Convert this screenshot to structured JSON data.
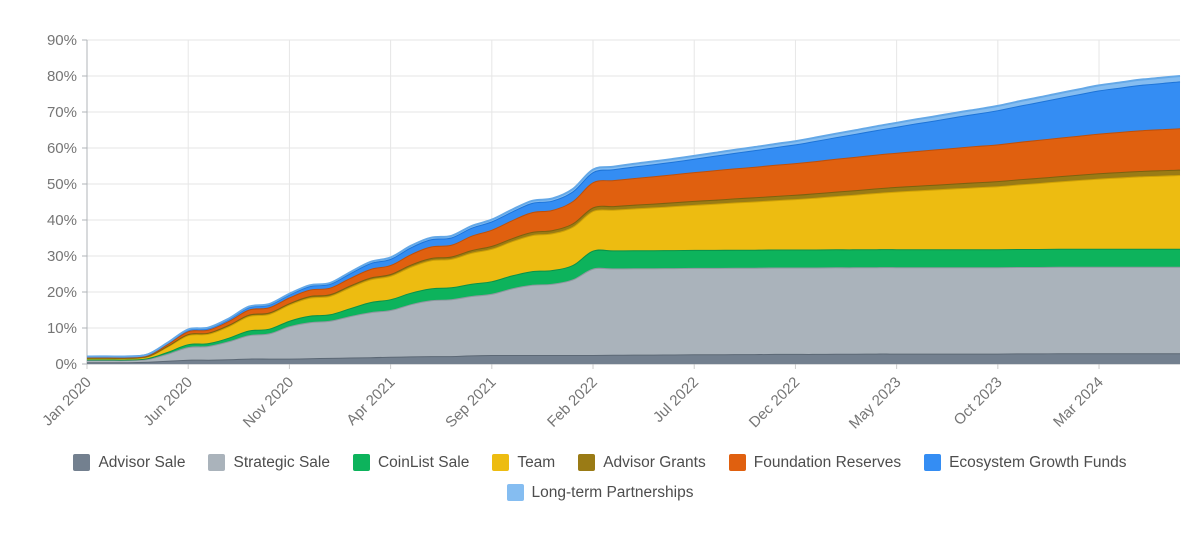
{
  "chart_data": {
    "type": "area",
    "stacked": true,
    "curve": "smooth",
    "title": "",
    "xlabel": "",
    "ylabel": "",
    "ylim": [
      0,
      90
    ],
    "y_tick_labels": [
      "0%",
      "10%",
      "20%",
      "30%",
      "40%",
      "50%",
      "60%",
      "70%",
      "80%",
      "90%"
    ],
    "x_tick_labels": [
      "Jan 2020",
      "Jun 2020",
      "Nov 2020",
      "Apr 2021",
      "Sep 2021",
      "Feb 2022",
      "Jul 2022",
      "Dec 2022",
      "May 2023",
      "Oct 2023",
      "Mar 2024"
    ],
    "x_tick_every_points": 5,
    "x_points": 55,
    "x_start": "Jan 2020",
    "x_end_estimate": "Jul 2024",
    "grid": true,
    "legend_position": "bottom",
    "axis_colors": {
      "grid": "#e6e6e6",
      "axis_line": "#b0b4b8",
      "tick_text": "#757575"
    },
    "legend_rows": [
      [
        "Advisor Sale",
        "Strategic Sale",
        "CoinList Sale",
        "Team",
        "Advisor Grants",
        "Foundation Reserves",
        "Ecosystem Growth Funds"
      ],
      [
        "Long-term Partnerships"
      ]
    ],
    "series": [
      {
        "name": "Advisor Sale",
        "color": "#73808f",
        "stroke": "#5c6875",
        "values": [
          0.5,
          0.5,
          0.5,
          0.6,
          0.9,
          1.2,
          1.2,
          1.3,
          1.5,
          1.5,
          1.5,
          1.6,
          1.7,
          1.8,
          1.9,
          2.0,
          2.1,
          2.2,
          2.2,
          2.4,
          2.5,
          2.5,
          2.5,
          2.5,
          2.5,
          2.5,
          2.55,
          2.6,
          2.6,
          2.65,
          2.7,
          2.7,
          2.75,
          2.75,
          2.8,
          2.8,
          2.8,
          2.85,
          2.85,
          2.9,
          2.9,
          2.9,
          2.9,
          2.9,
          2.9,
          2.9,
          2.95,
          2.95,
          3.0,
          3.0,
          3.0,
          3.0,
          3.0,
          3.0,
          3.0
        ]
      },
      {
        "name": "Strategic Sale",
        "color": "#aab3bb",
        "stroke": "#8e979f",
        "values": [
          0.6,
          0.6,
          0.6,
          0.8,
          2.0,
          3.5,
          3.8,
          5.0,
          6.5,
          7.0,
          9.0,
          10.0,
          10.3,
          11.5,
          12.5,
          13.0,
          14.5,
          15.5,
          15.8,
          16.5,
          17.0,
          18.5,
          19.5,
          19.8,
          21.0,
          24.0,
          24.0,
          24.0,
          24.0,
          24.0,
          24.0,
          24.0,
          24.0,
          24.0,
          24.0,
          24.0,
          24.0,
          24.0,
          24.0,
          24.0,
          24.0,
          24.0,
          24.0,
          24.0,
          24.0,
          24.0,
          24.0,
          24.0,
          24.0,
          24.0,
          24.0,
          24.0,
          24.0,
          24.0,
          24.0
        ]
      },
      {
        "name": "CoinList Sale",
        "color": "#0db35c",
        "stroke": "#0a9149",
        "values": [
          0.15,
          0.15,
          0.15,
          0.2,
          0.5,
          0.8,
          0.8,
          1.0,
          1.3,
          1.3,
          1.5,
          1.8,
          1.8,
          2.2,
          2.8,
          3.0,
          3.2,
          3.3,
          3.3,
          3.4,
          3.5,
          3.6,
          3.8,
          3.8,
          4.0,
          5.0,
          5.0,
          5.0,
          5.0,
          5.0,
          5.0,
          5.0,
          5.0,
          5.0,
          5.0,
          5.0,
          5.0,
          5.0,
          5.0,
          5.0,
          5.0,
          5.0,
          5.0,
          5.0,
          5.0,
          5.0,
          5.0,
          5.0,
          5.0,
          5.0,
          5.0,
          5.0,
          5.0,
          5.0,
          5.0
        ]
      },
      {
        "name": "Team",
        "color": "#edbc11",
        "stroke": "#cfa106",
        "values": [
          0.4,
          0.4,
          0.4,
          0.5,
          1.5,
          2.5,
          2.6,
          3.2,
          4.0,
          4.1,
          4.5,
          5.0,
          5.1,
          5.8,
          6.3,
          6.5,
          7.2,
          7.8,
          7.9,
          8.6,
          9.0,
          9.5,
          10.0,
          10.2,
          10.6,
          11.0,
          11.3,
          11.6,
          11.9,
          12.2,
          12.5,
          12.8,
          13.1,
          13.4,
          13.7,
          14.0,
          14.4,
          14.8,
          15.2,
          15.6,
          16.0,
          16.3,
          16.6,
          16.9,
          17.2,
          17.5,
          17.9,
          18.3,
          18.7,
          19.1,
          19.5,
          19.8,
          20.1,
          20.3,
          20.5
        ]
      },
      {
        "name": "Advisor Grants",
        "color": "#9a7b15",
        "stroke": "#7c620e",
        "values": [
          0.08,
          0.08,
          0.08,
          0.1,
          0.2,
          0.3,
          0.3,
          0.35,
          0.4,
          0.4,
          0.4,
          0.45,
          0.45,
          0.5,
          0.5,
          0.5,
          0.6,
          0.65,
          0.65,
          0.75,
          0.8,
          0.85,
          0.9,
          0.9,
          0.95,
          1.0,
          1.02,
          1.04,
          1.06,
          1.08,
          1.1,
          1.12,
          1.14,
          1.16,
          1.18,
          1.2,
          1.22,
          1.24,
          1.26,
          1.28,
          1.3,
          1.32,
          1.34,
          1.36,
          1.38,
          1.4,
          1.42,
          1.44,
          1.46,
          1.48,
          1.5,
          1.5,
          1.5,
          1.5,
          1.5
        ]
      },
      {
        "name": "Foundation Reserves",
        "color": "#e0600f",
        "stroke": "#bf4f08",
        "values": [
          0.2,
          0.2,
          0.2,
          0.25,
          0.5,
          0.8,
          0.85,
          1.1,
          1.4,
          1.45,
          1.6,
          1.8,
          1.85,
          2.1,
          2.4,
          2.5,
          2.9,
          3.2,
          3.25,
          4.0,
          4.5,
          5.0,
          5.5,
          5.6,
          6.2,
          7.0,
          7.2,
          7.4,
          7.6,
          7.8,
          8.0,
          8.2,
          8.35,
          8.5,
          8.65,
          8.8,
          8.95,
          9.1,
          9.25,
          9.4,
          9.5,
          9.65,
          9.8,
          9.95,
          10.1,
          10.2,
          10.4,
          10.55,
          10.7,
          10.85,
          11.0,
          11.15,
          11.3,
          11.4,
          11.5
        ]
      },
      {
        "name": "Ecosystem Growth Funds",
        "color": "#348df3",
        "stroke": "#1d74d8",
        "values": [
          0.12,
          0.12,
          0.12,
          0.15,
          0.3,
          0.4,
          0.45,
          0.55,
          0.7,
          0.75,
          0.8,
          1.0,
          1.05,
          1.3,
          1.6,
          1.7,
          1.9,
          2.0,
          2.05,
          2.2,
          2.3,
          2.4,
          2.55,
          2.6,
          2.7,
          2.8,
          3.0,
          3.2,
          3.35,
          3.5,
          3.7,
          4.0,
          4.3,
          4.6,
          4.9,
          5.2,
          5.6,
          6.0,
          6.4,
          6.8,
          7.2,
          7.7,
          8.1,
          8.6,
          9.0,
          9.5,
          10.0,
          10.5,
          11.0,
          11.5,
          12.0,
          12.3,
          12.6,
          12.8,
          13.0
        ]
      },
      {
        "name": "Long-term Partnerships",
        "color": "#85bdf1",
        "stroke": "#64a8e7",
        "values": [
          0.05,
          0.05,
          0.05,
          0.06,
          0.08,
          0.1,
          0.1,
          0.12,
          0.15,
          0.15,
          0.2,
          0.22,
          0.22,
          0.3,
          0.35,
          0.4,
          0.42,
          0.44,
          0.44,
          0.48,
          0.5,
          0.54,
          0.58,
          0.58,
          0.64,
          0.7,
          0.72,
          0.74,
          0.76,
          0.78,
          0.8,
          0.82,
          0.84,
          0.86,
          0.88,
          0.9,
          0.94,
          0.98,
          1.02,
          1.06,
          1.1,
          1.12,
          1.14,
          1.16,
          1.18,
          1.2,
          1.24,
          1.28,
          1.32,
          1.36,
          1.4,
          1.42,
          1.45,
          1.48,
          1.5
        ]
      }
    ]
  }
}
